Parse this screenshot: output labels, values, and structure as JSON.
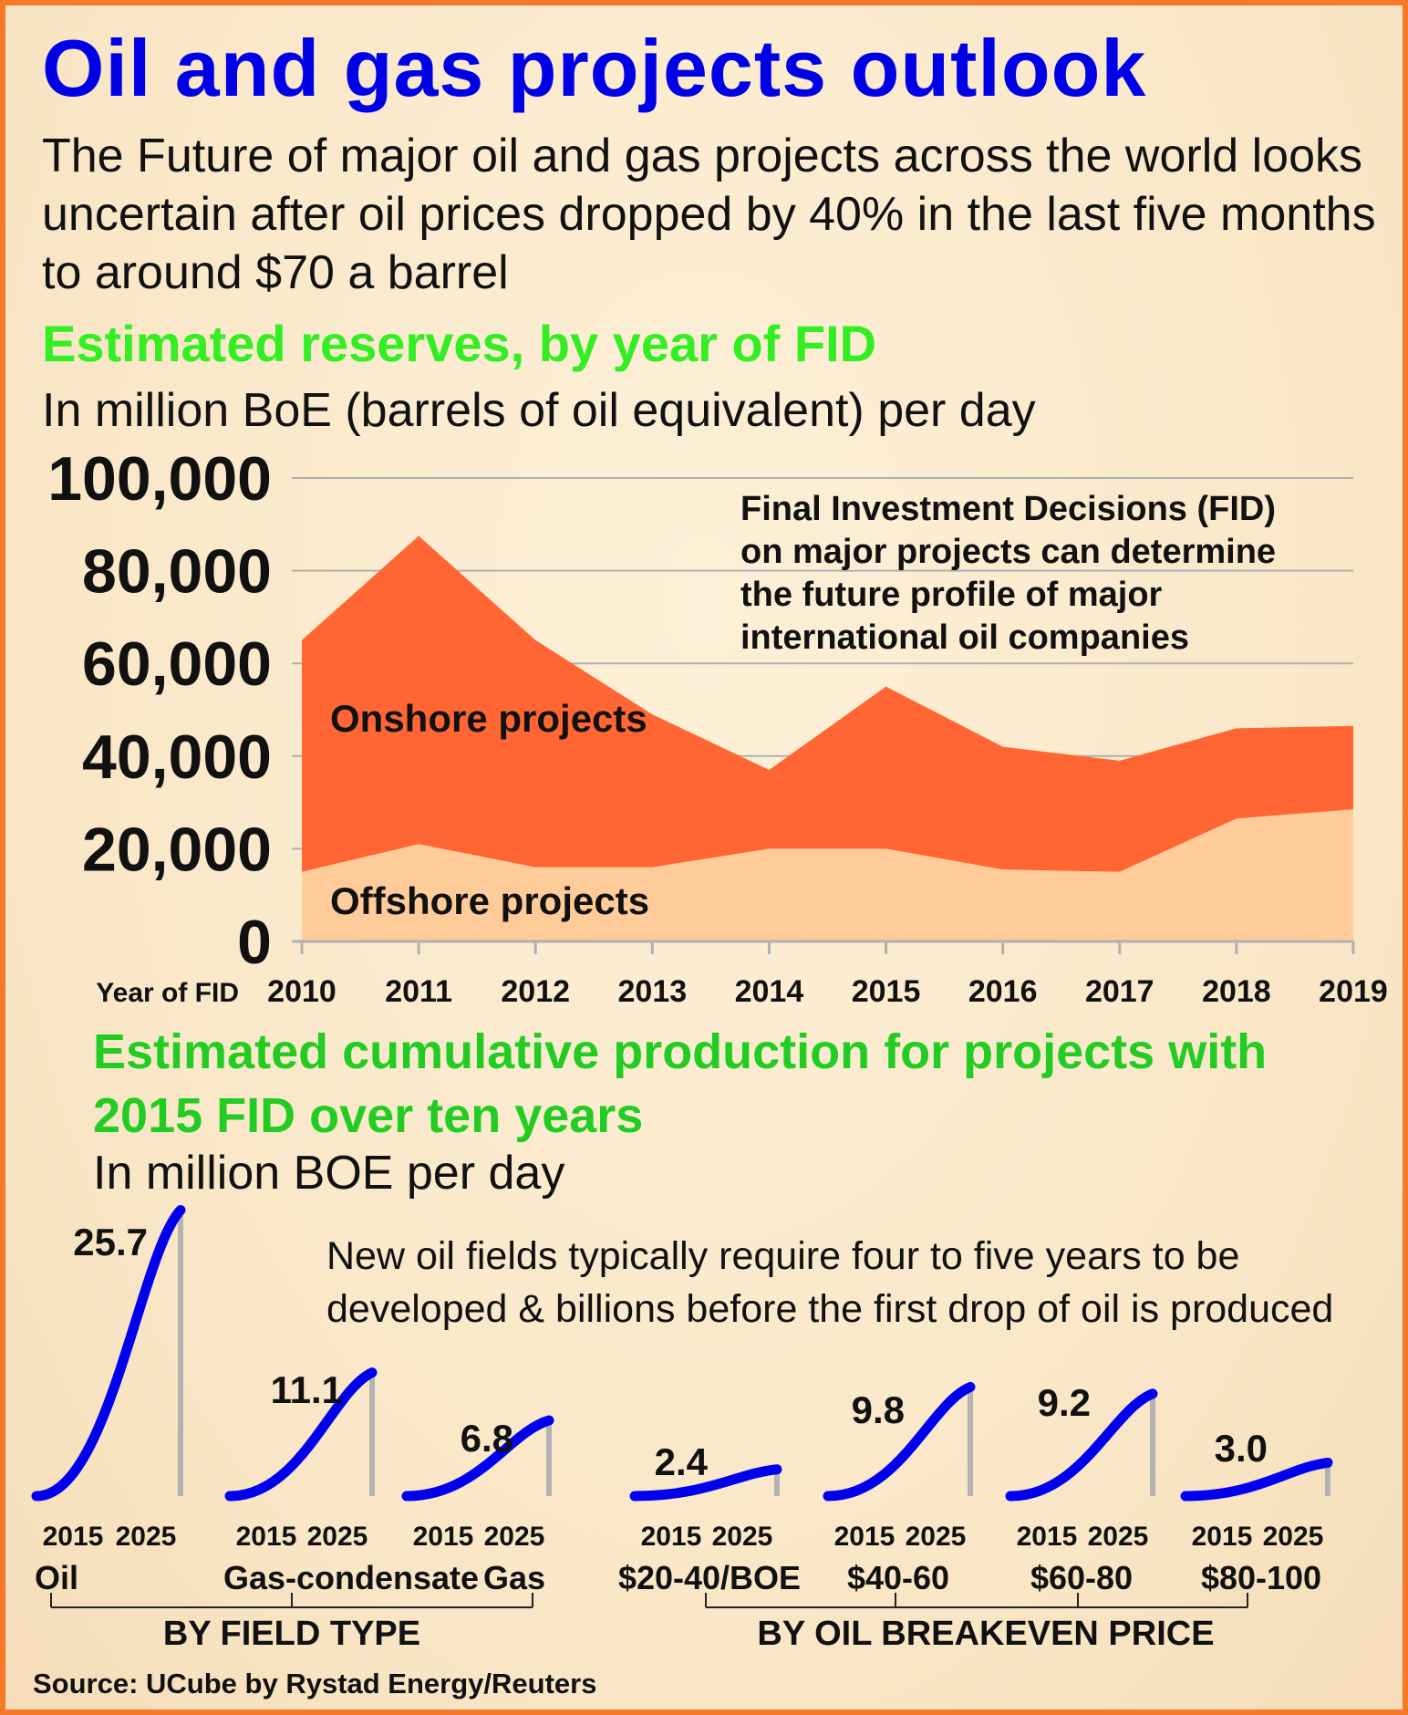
{
  "title": "Oil and gas projects outlook",
  "intro": "The Future of major oil and gas projects across the world looks uncertain after oil prices dropped by 40% in the last five months to around $70 a barrel",
  "section1": {
    "heading": "Estimated reserves, by year of FID",
    "units": "In million BoE (barrels of oil equivalent) per day"
  },
  "section2": {
    "heading": "Estimated cumulative production for projects with 2015 FID over ten years",
    "units": "In million BOE per day",
    "note": "New oil fields typically require four to five years to be developed & billions before the first drop of oil is produced"
  },
  "source": "Source: UCube by Rystad Energy/Reuters",
  "colors": {
    "title": "#0000e6",
    "heading": "#33ee22",
    "onshore": "#ff6633",
    "offshore": "#ffcc99",
    "curve": "#0000ee",
    "border": "#f47a2a"
  },
  "chart_data": [
    {
      "type": "area",
      "stacked": true,
      "x": [
        2010,
        2011,
        2012,
        2013,
        2014,
        2015,
        2016,
        2017,
        2018,
        2019
      ],
      "x_label": "Year of FID",
      "ylim": [
        0,
        100000
      ],
      "y_ticks": [
        "0",
        "20,000",
        "40,000",
        "60,000",
        "80,000",
        "100,000"
      ],
      "grid": true,
      "annotation": "Final Investment Decisions (FID) on major projects can determine the future profile of major international oil companies",
      "series": [
        {
          "name": "Offshore projects",
          "values": [
            15000,
            21000,
            16000,
            16000,
            20000,
            20000,
            15500,
            15000,
            26500,
            28500
          ]
        },
        {
          "name": "Onshore projects",
          "values": [
            50000,
            66500,
            49000,
            33000,
            17000,
            35000,
            26500,
            24000,
            19500,
            18000
          ]
        }
      ]
    },
    {
      "type": "line",
      "x_start": "2015",
      "x_end": "2025",
      "groups": [
        {
          "label": "BY FIELD TYPE",
          "items": [
            {
              "category": "Oil",
              "value": 25.7,
              "value_label": "25.7"
            },
            {
              "category": "Gas-condensate",
              "value": 11.1,
              "value_label": "11.1"
            },
            {
              "category": "Gas",
              "value": 6.8,
              "value_label": "6.8"
            }
          ]
        },
        {
          "label": "BY OIL BREAKEVEN PRICE",
          "items": [
            {
              "category": "$20-40/BOE",
              "value": 2.4,
              "value_label": "2.4"
            },
            {
              "category": "$40-60",
              "value": 9.8,
              "value_label": "9.8"
            },
            {
              "category": "$60-80",
              "value": 9.2,
              "value_label": "9.2"
            },
            {
              "category": "$80-100",
              "value": 3.0,
              "value_label": "3.0"
            }
          ]
        }
      ]
    }
  ]
}
